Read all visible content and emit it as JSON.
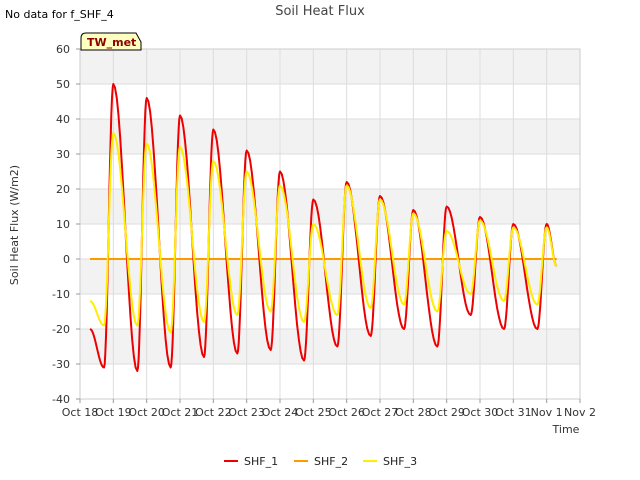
{
  "header": {
    "nodata_note": "No data for f_SHF_4",
    "tag": "TW_met"
  },
  "chart_data": {
    "type": "line",
    "title": "Soil Heat Flux",
    "xlabel": "Time",
    "ylabel": "Soil Heat Flux (W/m2)",
    "xlim": [
      0,
      15
    ],
    "ylim": [
      -40,
      60
    ],
    "yticks": [
      -40,
      -30,
      -20,
      -10,
      0,
      10,
      20,
      30,
      40,
      50,
      60
    ],
    "xtick_labels": [
      "Oct 18",
      "Oct 19",
      "Oct 20",
      "Oct 21",
      "Oct 22",
      "Oct 23",
      "Oct 24",
      "Oct 25",
      "Oct 26",
      "Oct 27",
      "Oct 28",
      "Oct 29",
      "Oct 30",
      "Oct 31",
      "Nov 1",
      "Nov 2"
    ],
    "grid": true,
    "colors": {
      "SHF_1": "#ee0000",
      "SHF_2": "#ff9900",
      "SHF_3": "#ffee00"
    },
    "daily": {
      "SHF_1": {
        "min": [
          -31,
          -32,
          -31,
          -28,
          -27,
          -26,
          -29,
          -25,
          -22,
          -20,
          -25,
          -16,
          -20,
          -20,
          -2
        ],
        "max": [
          50,
          46,
          41,
          37,
          31,
          25,
          17,
          22,
          18,
          14,
          15,
          12,
          10,
          10
        ]
      },
      "SHF_3": {
        "min": [
          -19,
          -19,
          -21,
          -18,
          -16,
          -15,
          -18,
          -16,
          -14,
          -13,
          -15,
          -10,
          -12,
          -13,
          -2
        ],
        "max": [
          36,
          33,
          32,
          28,
          25,
          21,
          10,
          21,
          17,
          13,
          8,
          11,
          9,
          9
        ]
      }
    },
    "series": [
      {
        "name": "SHF_1",
        "start_day": 0.3,
        "end_day": 14.3,
        "start_value": -20
      },
      {
        "name": "SHF_2",
        "start_day": 0.3,
        "end_day": 14.3,
        "value": 0
      },
      {
        "name": "SHF_3",
        "start_day": 0.3,
        "end_day": 14.3,
        "start_value": -12
      }
    ],
    "legend": [
      "SHF_1",
      "SHF_2",
      "SHF_3"
    ]
  }
}
